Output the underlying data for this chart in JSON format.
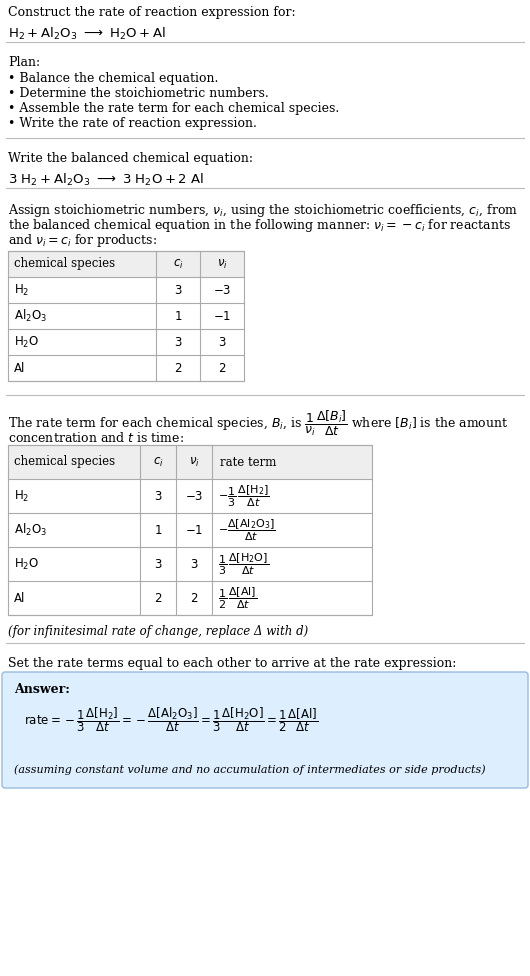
{
  "bg_color": "#ffffff",
  "text_color": "#000000",
  "title_text": "Construct the rate of reaction expression for:",
  "plan_header": "Plan:",
  "plan_items": [
    "• Balance the chemical equation.",
    "• Determine the stoichiometric numbers.",
    "• Assemble the rate term for each chemical species.",
    "• Write the rate of reaction expression."
  ],
  "balanced_header": "Write the balanced chemical equation:",
  "infinitesimal_note": "(for infinitesimal rate of change, replace Δ with d)",
  "set_rate_text": "Set the rate terms equal to each other to arrive at the rate expression:",
  "answer_label": "Answer:",
  "answer_note": "(assuming constant volume and no accumulation of intermediates or side products)",
  "fig_w": 5.3,
  "fig_h": 9.76,
  "dpi": 100
}
